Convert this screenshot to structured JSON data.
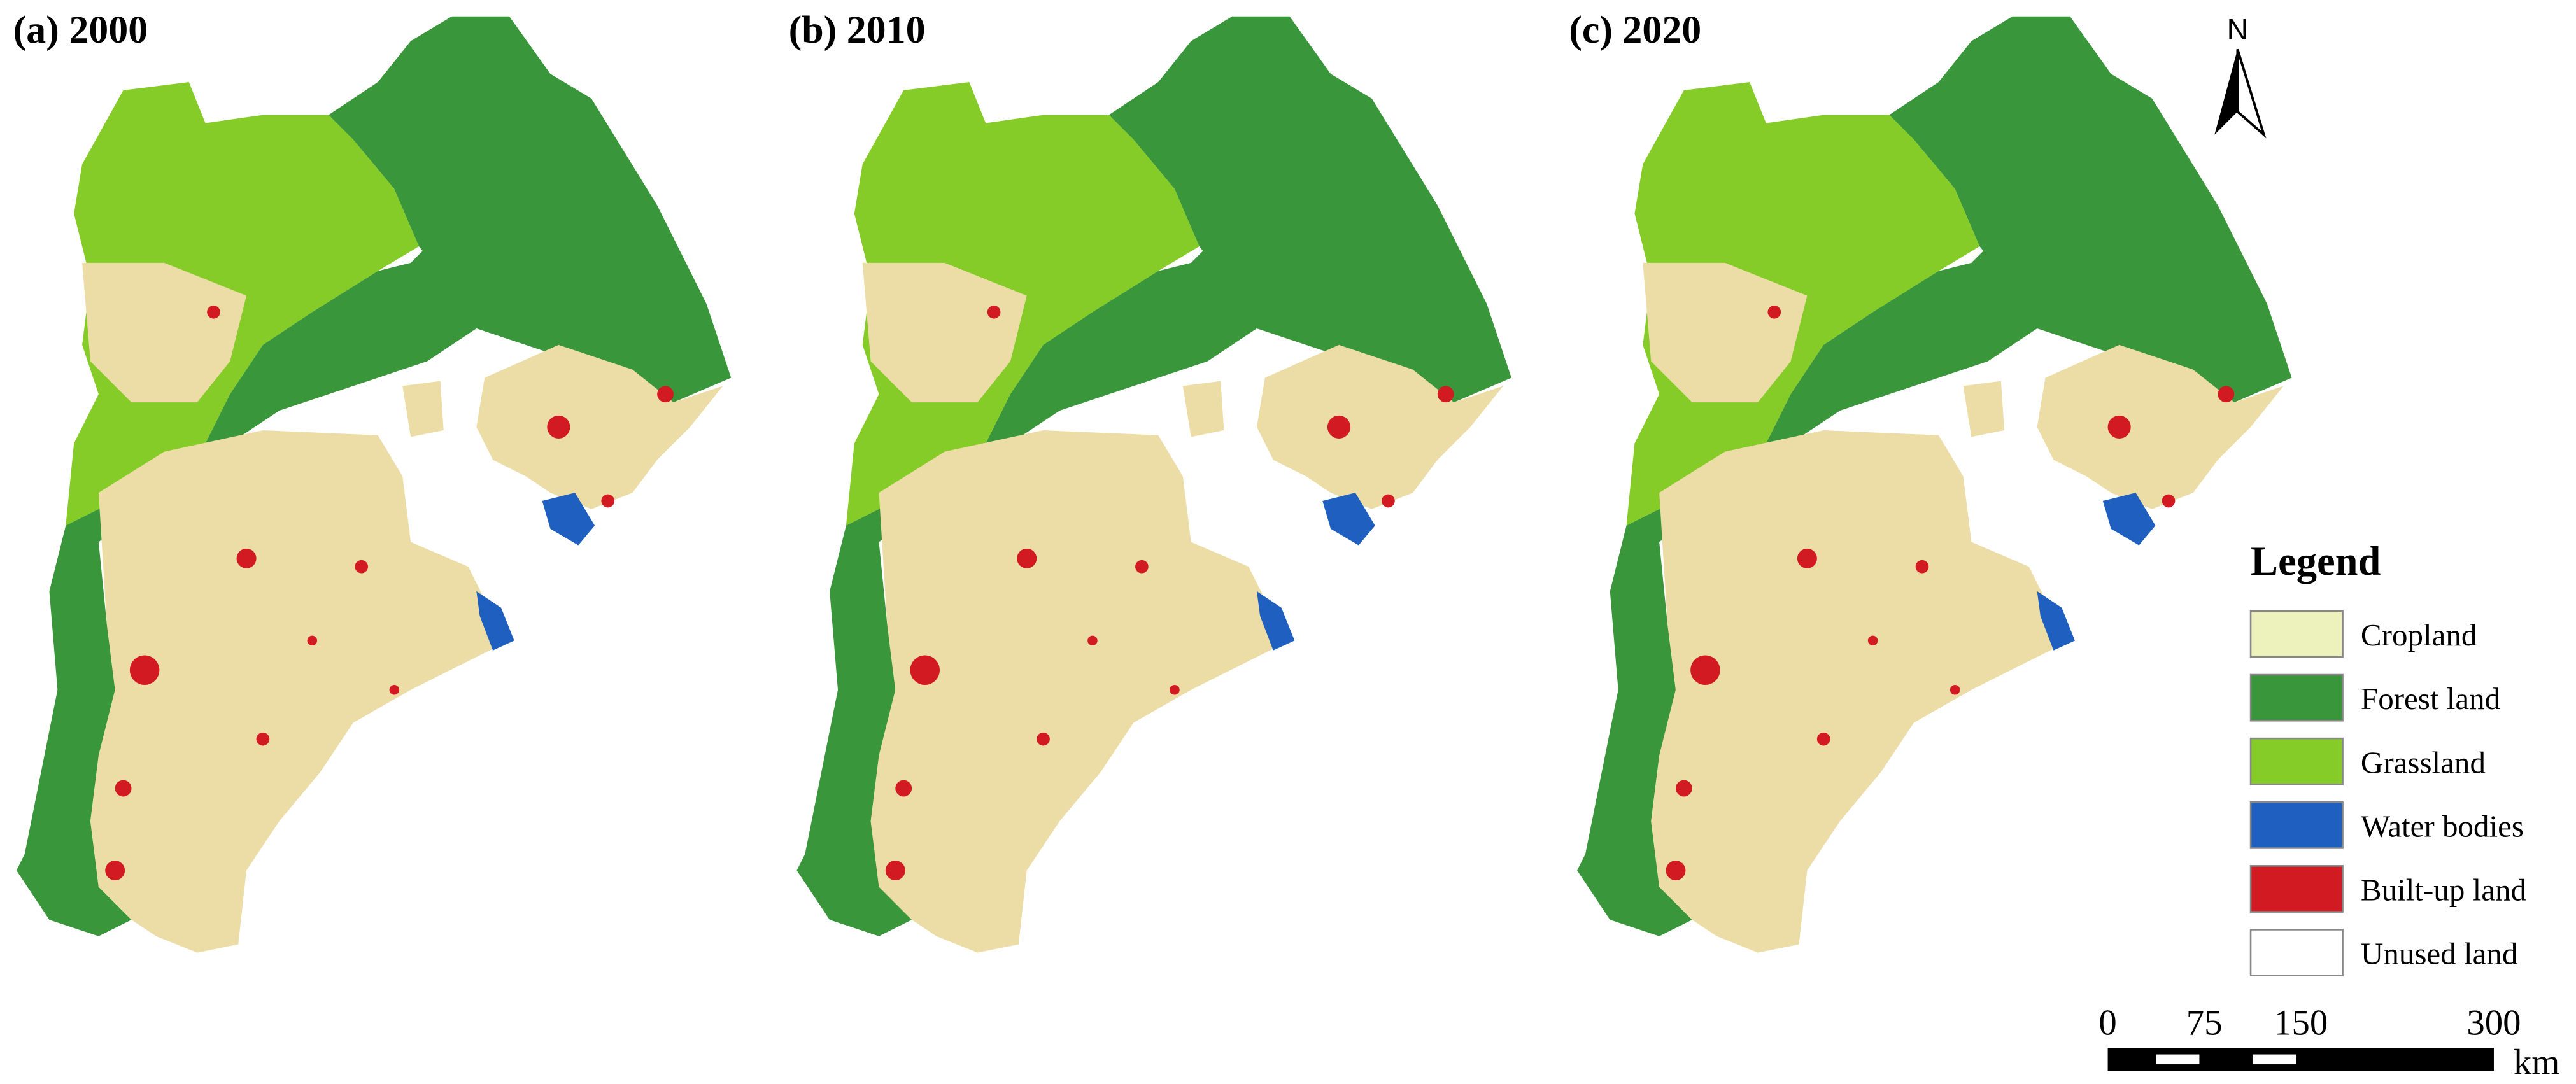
{
  "panels": [
    {
      "title": "(a) 2000"
    },
    {
      "title": "(b) 2010"
    },
    {
      "title": "(c) 2020"
    }
  ],
  "north_arrow": {
    "label": "N"
  },
  "legend": {
    "title": "Legend",
    "items": [
      {
        "label": "Cropland",
        "color": "#edf2bd"
      },
      {
        "label": "Forest land",
        "color": "#3a963a"
      },
      {
        "label": "Grassland",
        "color": "#86cc28"
      },
      {
        "label": "Water bodies",
        "color": "#1f5fbf"
      },
      {
        "label": "Built-up land",
        "color": "#d21a22"
      },
      {
        "label": "Unused land",
        "color": "#ffffff"
      }
    ]
  },
  "scale_bar": {
    "ticks": [
      0,
      75,
      150,
      300
    ],
    "unit": "km"
  }
}
